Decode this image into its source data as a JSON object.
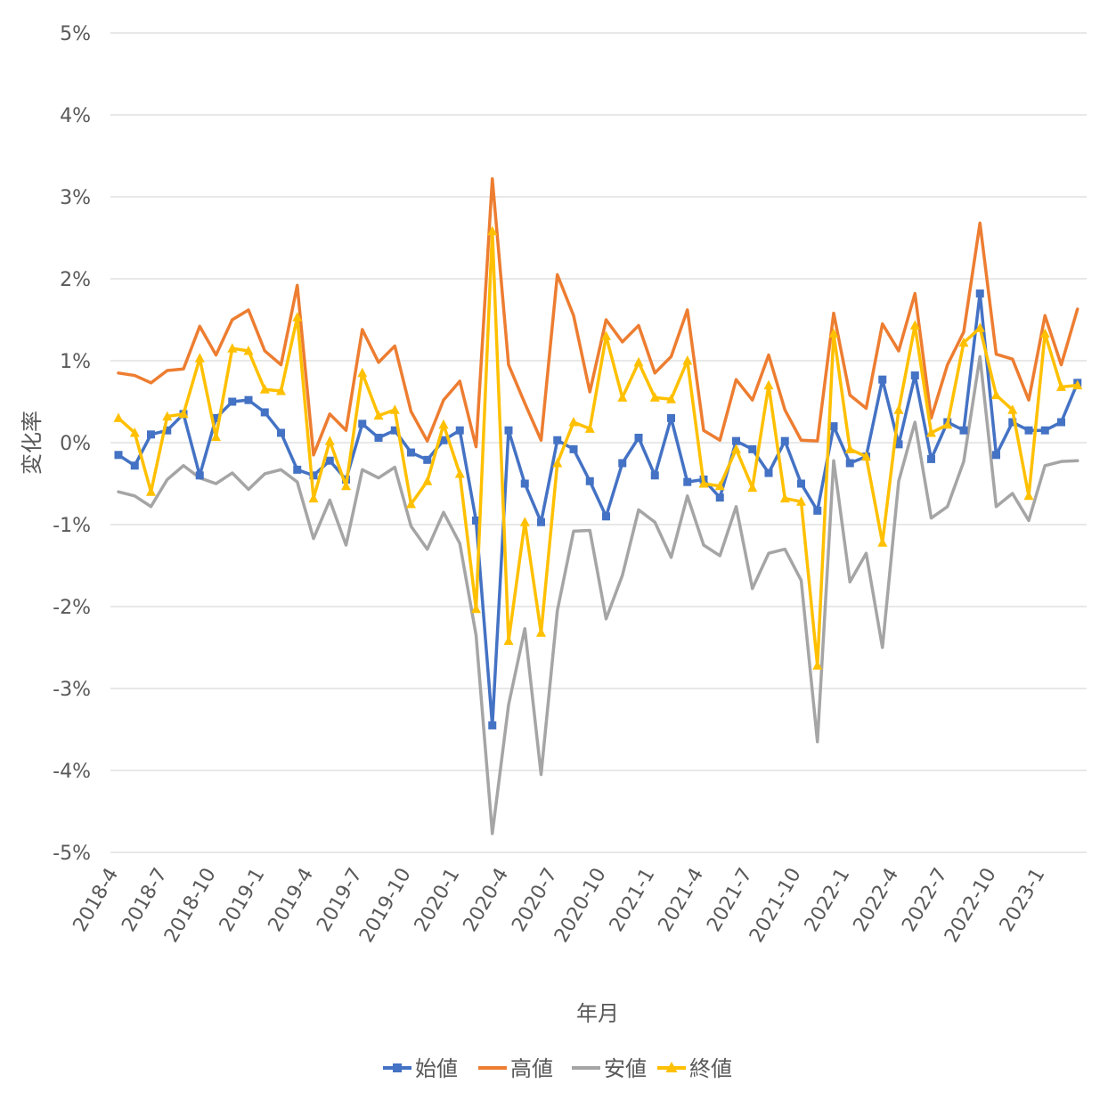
{
  "chart_data": {
    "type": "line",
    "title": "",
    "xlabel": "年月",
    "ylabel": "変化率",
    "ylim": [
      -5,
      5
    ],
    "y_ticks": [
      5,
      4,
      3,
      2,
      1,
      0,
      -1,
      -2,
      -3,
      -4,
      -5
    ],
    "y_tick_labels": [
      "5%",
      "4%",
      "3%",
      "2%",
      "1%",
      "0%",
      "-1%",
      "-2%",
      "-3%",
      "-4%",
      "-5%"
    ],
    "x_tick_labels": [
      "2018-4",
      "2018-7",
      "2018-10",
      "2019-1",
      "2019-4",
      "2019-7",
      "2019-10",
      "2020-1",
      "2020-4",
      "2020-7",
      "2020-10",
      "2021-1",
      "2021-4",
      "2021-7",
      "2021-10",
      "2022-1",
      "2022-4",
      "2022-7",
      "2022-10",
      "2023-1"
    ],
    "grid": true,
    "legend": "bottom",
    "series": [
      {
        "name": "始値",
        "color": "#4472C4",
        "marker": "square",
        "values": [
          -0.15,
          -0.28,
          0.1,
          0.15,
          0.35,
          -0.4,
          0.3,
          0.5,
          0.52,
          0.37,
          0.12,
          -0.33,
          -0.4,
          -0.22,
          -0.45,
          0.23,
          0.06,
          0.15,
          -0.12,
          -0.21,
          0.03,
          0.15,
          -0.95,
          -3.45,
          0.15,
          -0.5,
          -0.97,
          0.03,
          -0.08,
          -0.47,
          -0.9,
          -0.25,
          0.06,
          -0.4,
          0.3,
          -0.48,
          -0.45,
          -0.67,
          0.02,
          -0.08,
          -0.37,
          0.02,
          -0.5,
          -0.83,
          0.2,
          -0.25,
          -0.17,
          0.77,
          -0.02,
          0.82,
          -0.2,
          0.25,
          0.15,
          1.82,
          -0.15,
          0.25,
          0.15,
          0.15,
          0.25,
          0.73
        ]
      },
      {
        "name": "高値",
        "color": "#ED7D31",
        "marker": "none",
        "values": [
          0.85,
          0.82,
          0.73,
          0.88,
          0.9,
          1.42,
          1.07,
          1.5,
          1.62,
          1.12,
          0.95,
          1.92,
          -0.15,
          0.35,
          0.15,
          1.38,
          0.98,
          1.18,
          0.38,
          0.02,
          0.52,
          0.75,
          -0.05,
          3.22,
          0.95,
          0.48,
          0.03,
          2.05,
          1.55,
          0.62,
          1.5,
          1.23,
          1.43,
          0.85,
          1.05,
          1.62,
          0.15,
          0.03,
          0.77,
          0.52,
          1.07,
          0.4,
          0.03,
          0.02,
          1.58,
          0.58,
          0.42,
          1.45,
          1.12,
          1.82,
          0.3,
          0.95,
          1.35,
          2.68,
          1.08,
          1.02,
          0.52,
          1.55,
          0.95,
          1.63
        ]
      },
      {
        "name": "安値",
        "color": "#A5A5A5",
        "marker": "none",
        "values": [
          -0.6,
          -0.65,
          -0.78,
          -0.45,
          -0.28,
          -0.43,
          -0.5,
          -0.37,
          -0.57,
          -0.38,
          -0.33,
          -0.48,
          -1.17,
          -0.7,
          -1.25,
          -0.33,
          -0.43,
          -0.3,
          -1.02,
          -1.3,
          -0.85,
          -1.23,
          -2.35,
          -4.77,
          -3.2,
          -2.27,
          -4.05,
          -2.05,
          -1.08,
          -1.07,
          -2.15,
          -1.62,
          -0.82,
          -0.97,
          -1.4,
          -0.65,
          -1.25,
          -1.38,
          -0.78,
          -1.78,
          -1.35,
          -1.3,
          -1.68,
          -3.65,
          -0.22,
          -1.7,
          -1.35,
          -2.5,
          -0.47,
          0.25,
          -0.92,
          -0.78,
          -0.23,
          1.05,
          -0.78,
          -0.62,
          -0.95,
          -0.28,
          -0.23,
          -0.22
        ]
      },
      {
        "name": "終値",
        "color": "#FFC000",
        "marker": "triangle",
        "values": [
          0.3,
          0.12,
          -0.6,
          0.32,
          0.35,
          1.03,
          0.07,
          1.15,
          1.12,
          0.65,
          0.63,
          1.53,
          -0.68,
          0.02,
          -0.53,
          0.85,
          0.33,
          0.4,
          -0.75,
          -0.47,
          0.22,
          -0.38,
          -2.03,
          2.58,
          -2.42,
          -0.97,
          -2.32,
          -0.25,
          0.25,
          0.17,
          1.3,
          0.55,
          0.98,
          0.55,
          0.53,
          1.0,
          -0.5,
          -0.53,
          -0.08,
          -0.55,
          0.7,
          -0.68,
          -0.72,
          -2.72,
          1.33,
          -0.08,
          -0.17,
          -1.22,
          0.4,
          1.43,
          0.12,
          0.22,
          1.22,
          1.4,
          0.58,
          0.4,
          -0.65,
          1.33,
          0.68,
          0.7
        ]
      }
    ]
  }
}
